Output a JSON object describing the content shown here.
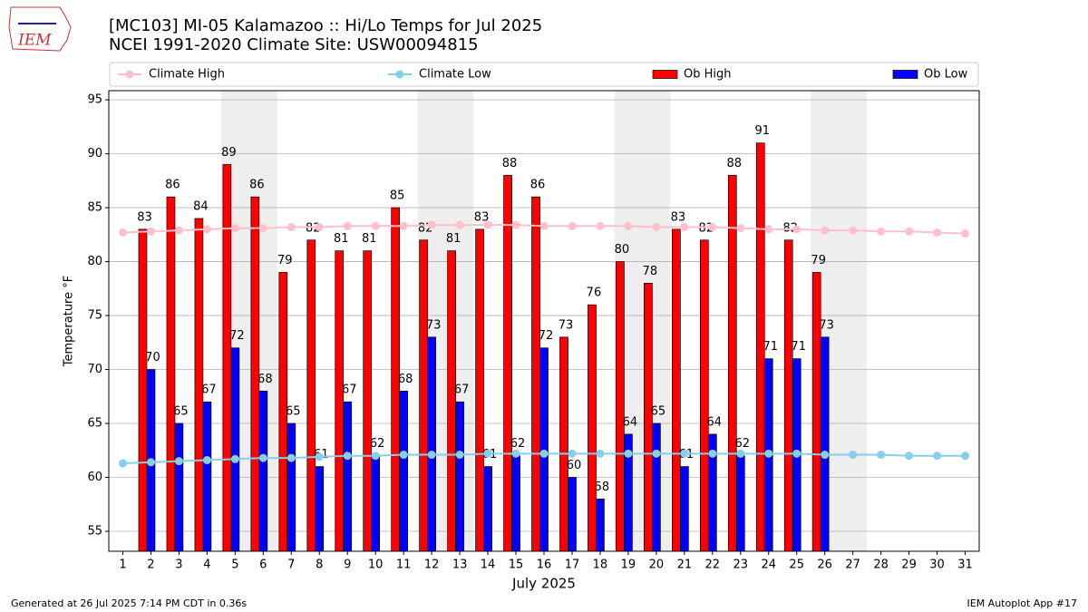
{
  "chart_data": {
    "type": "bar",
    "logo": "IEM",
    "title": "[MC103] MI-05 Kalamazoo  :: Hi/Lo Temps for Jul 2025",
    "subtitle": "NCEI 1991-2020 Climate Site: USW00094815",
    "x_label": "July 2025",
    "y_label": "Temperature °F",
    "footer_left": "Generated at 26 Jul 2025 7:14 PM CDT in 0.36s",
    "footer_right": "IEM Autoplot App #17",
    "x": [
      1,
      2,
      3,
      4,
      5,
      6,
      7,
      8,
      9,
      10,
      11,
      12,
      13,
      14,
      15,
      16,
      17,
      18,
      19,
      20,
      21,
      22,
      23,
      24,
      25,
      26,
      27,
      28,
      29,
      30,
      31
    ],
    "xlim": [
      0.5,
      31.5
    ],
    "xticks": [
      1,
      2,
      3,
      4,
      5,
      6,
      7,
      8,
      9,
      10,
      11,
      12,
      13,
      14,
      15,
      16,
      17,
      18,
      19,
      20,
      21,
      22,
      23,
      24,
      25,
      26,
      27,
      28,
      29,
      30,
      31
    ],
    "ylim": [
      53.15,
      95.85
    ],
    "yticks": [
      55,
      60,
      65,
      70,
      75,
      80,
      85,
      90,
      95
    ],
    "grid": true,
    "legend": "top",
    "shaded_x": [
      [
        4.5,
        6.5
      ],
      [
        11.5,
        13.5
      ],
      [
        18.5,
        20.5
      ],
      [
        25.5,
        27.5
      ]
    ],
    "shade_color": "#eeeeee",
    "series": [
      {
        "name": "Climate High",
        "kind": "line",
        "color": "#ffc0cb",
        "values": [
          82.7,
          82.8,
          82.9,
          83.0,
          83.1,
          83.1,
          83.2,
          83.2,
          83.3,
          83.3,
          83.3,
          83.4,
          83.4,
          83.4,
          83.4,
          83.3,
          83.3,
          83.3,
          83.3,
          83.2,
          83.2,
          83.2,
          83.1,
          83.0,
          83.0,
          82.9,
          82.9,
          82.8,
          82.8,
          82.7,
          82.6
        ]
      },
      {
        "name": "Climate Low",
        "kind": "line",
        "color": "#87ceeb",
        "values": [
          61.3,
          61.4,
          61.5,
          61.6,
          61.7,
          61.8,
          61.8,
          61.9,
          62.0,
          62.0,
          62.1,
          62.1,
          62.1,
          62.2,
          62.2,
          62.2,
          62.2,
          62.2,
          62.2,
          62.2,
          62.2,
          62.2,
          62.2,
          62.2,
          62.2,
          62.1,
          62.1,
          62.1,
          62.0,
          62.0,
          62.0
        ]
      },
      {
        "name": "Ob High",
        "kind": "bar",
        "color": "#ff0000",
        "values": [
          null,
          83,
          86,
          84,
          89,
          86,
          79,
          82,
          81,
          81,
          85,
          82,
          81,
          83,
          88,
          86,
          73,
          76,
          80,
          78,
          83,
          82,
          88,
          91,
          82,
          79,
          null,
          null,
          null,
          null,
          null
        ]
      },
      {
        "name": "Ob Low",
        "kind": "bar",
        "color": "#0000ff",
        "values": [
          null,
          70,
          65,
          67,
          72,
          68,
          65,
          61,
          67,
          62,
          68,
          73,
          67,
          61,
          62,
          72,
          60,
          58,
          64,
          65,
          61,
          64,
          62,
          71,
          71,
          73,
          null,
          null,
          null,
          null,
          null
        ]
      }
    ]
  }
}
